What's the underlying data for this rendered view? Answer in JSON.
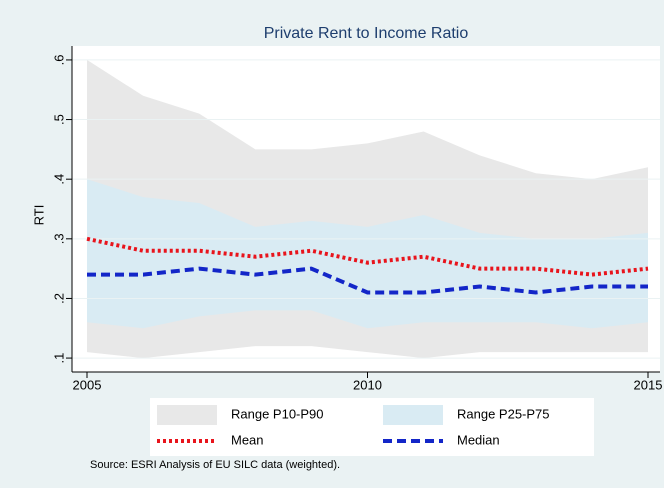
{
  "chart_data": {
    "type": "line",
    "title": "Private Rent to Income Ratio",
    "y_label": "RTI",
    "x": [
      2005,
      2006,
      2007,
      2008,
      2009,
      2010,
      2011,
      2012,
      2013,
      2014,
      2015
    ],
    "xlim": [
      2005,
      2015
    ],
    "xticks": [
      2005,
      2010,
      2015
    ],
    "ylim": [
      0.08,
      0.62
    ],
    "yticks": [
      {
        "value": 0.1,
        "label": ".1"
      },
      {
        "value": 0.2,
        "label": ".2"
      },
      {
        "value": 0.3,
        "label": ".3"
      },
      {
        "value": 0.4,
        "label": ".4"
      },
      {
        "value": 0.5,
        "label": ".5"
      },
      {
        "value": 0.6,
        "label": ".6"
      }
    ],
    "grid": true,
    "series": [
      {
        "name": "Range P10-P90",
        "color": "#e8e8e8",
        "kind": "range",
        "high": [
          0.6,
          0.54,
          0.51,
          0.45,
          0.45,
          0.46,
          0.48,
          0.44,
          0.41,
          0.4,
          0.42
        ],
        "low": [
          0.11,
          0.1,
          0.11,
          0.12,
          0.12,
          0.11,
          0.1,
          0.11,
          0.11,
          0.11,
          0.11
        ]
      },
      {
        "name": "Range P25-P75",
        "color": "#d9ebf3",
        "kind": "range",
        "high": [
          0.4,
          0.37,
          0.36,
          0.32,
          0.33,
          0.32,
          0.34,
          0.31,
          0.3,
          0.3,
          0.31
        ],
        "low": [
          0.16,
          0.15,
          0.17,
          0.18,
          0.18,
          0.15,
          0.16,
          0.16,
          0.16,
          0.15,
          0.16
        ]
      },
      {
        "name": "Mean",
        "color": "#e8141c",
        "kind": "line",
        "dash": "dotted",
        "values": [
          0.3,
          0.28,
          0.28,
          0.27,
          0.28,
          0.26,
          0.27,
          0.25,
          0.25,
          0.24,
          0.25
        ]
      },
      {
        "name": "Median",
        "color": "#1326c8",
        "kind": "line",
        "dash": "dashed",
        "values": [
          0.24,
          0.24,
          0.25,
          0.24,
          0.25,
          0.21,
          0.21,
          0.22,
          0.21,
          0.22,
          0.22
        ]
      }
    ],
    "note": "Source:  ESRI Analysis of EU SILC data (weighted)."
  }
}
